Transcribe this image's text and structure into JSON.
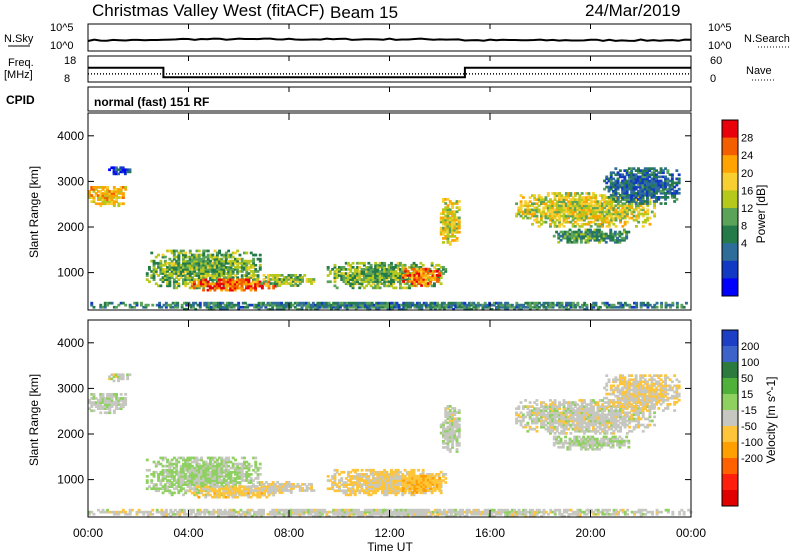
{
  "header": {
    "title": "Christmas Valley West (fitACF)",
    "beam": "Beam 15",
    "date": "24/Mar/2019"
  },
  "sky_panel": {
    "left_label": "N.Sky",
    "right_label": "N.Search",
    "left_ticks": [
      "10^5",
      "10^0"
    ],
    "right_ticks": [
      "10^5",
      "10^0"
    ]
  },
  "freq_panel": {
    "left_label_1": "Freq.",
    "left_label_2": "[MHz]",
    "left_ticks": [
      "18",
      "8"
    ],
    "right_ticks": [
      "60",
      "0"
    ],
    "right_label": "Nave",
    "freq_steps": [
      {
        "t0": 0,
        "t1": 3,
        "mhz": 14.5
      },
      {
        "t0": 3,
        "t1": 15,
        "mhz": 10.2
      },
      {
        "t0": 15,
        "t1": 24,
        "mhz": 14.5
      }
    ],
    "nave_level": 22
  },
  "cpid": {
    "label": "CPID",
    "program": "normal (fast) 151 RF"
  },
  "axes": {
    "y_label": "Slant Range [km]",
    "y_ticks": [
      "4000",
      "3000",
      "2000",
      "1000"
    ],
    "x_ticks": [
      "00:00",
      "04:00",
      "08:00",
      "12:00",
      "16:00",
      "20:00",
      "00:00"
    ],
    "x_label": "Time UT"
  },
  "colorbars": {
    "power": {
      "label": "Power [dB]",
      "ticks": [
        "28",
        "24",
        "20",
        "16",
        "12",
        "8",
        "4"
      ],
      "colors": [
        "#e8000b",
        "#f25e00",
        "#ffa300",
        "#f7cf30",
        "#b5c81c",
        "#5ca35a",
        "#257a49",
        "#2e6d9a",
        "#1239c4",
        "#0000ff"
      ]
    },
    "velocity": {
      "label": "Velocity [m s^-1]",
      "ticks": [
        "200",
        "100",
        "50",
        "15",
        "-15",
        "-50",
        "-100",
        "-200"
      ],
      "colors": [
        "#1c3fc6",
        "#3d62c9",
        "#2c7a3e",
        "#4fb13a",
        "#8fd160",
        "#c7c7c1",
        "#ffc53a",
        "#ff9f00",
        "#ff6100",
        "#ff1f0c",
        "#e10000"
      ]
    }
  },
  "chart_data": {
    "type": "heatmap",
    "title": "Christmas Valley West (fitACF)",
    "xlabel": "Time UT",
    "ylabel": "Slant Range [km]",
    "xlim": [
      0,
      24
    ],
    "ylim": [
      180,
      4500
    ],
    "x_ticks_hours": [
      0,
      4,
      8,
      12,
      16,
      20,
      24
    ],
    "y_ticks_km": [
      1000,
      2000,
      3000,
      4000
    ],
    "power_scale_db": [
      0,
      30
    ],
    "velocity_scale_ms": [
      -250,
      250
    ],
    "echo_regions": [
      {
        "t0": 0.0,
        "t1": 1.5,
        "r0": 2450,
        "r1": 2900,
        "power": 20,
        "velocity": 10
      },
      {
        "t0": 0.8,
        "t1": 1.7,
        "r0": 3150,
        "r1": 3300,
        "power": 6,
        "velocity": 0
      },
      {
        "t0": 2.3,
        "t1": 6.8,
        "r0": 650,
        "r1": 1500,
        "power": 14,
        "velocity": 30
      },
      {
        "t0": 4.0,
        "t1": 7.5,
        "r0": 600,
        "r1": 850,
        "power": 26,
        "velocity": -40
      },
      {
        "t0": 6.5,
        "t1": 9.0,
        "r0": 700,
        "r1": 950,
        "power": 16,
        "velocity": -10
      },
      {
        "t0": 9.5,
        "t1": 14.2,
        "r0": 650,
        "r1": 1200,
        "power": 14,
        "velocity": -30
      },
      {
        "t0": 12.5,
        "t1": 14.0,
        "r0": 700,
        "r1": 1100,
        "power": 24,
        "velocity": -60
      },
      {
        "t0": 14.0,
        "t1": 14.8,
        "r0": 1600,
        "r1": 2600,
        "power": 18,
        "velocity": 5
      },
      {
        "t0": 17.0,
        "t1": 22.5,
        "r0": 2000,
        "r1": 2750,
        "power": 18,
        "velocity": 0
      },
      {
        "t0": 18.5,
        "t1": 21.5,
        "r0": 1650,
        "r1": 1950,
        "power": 12,
        "velocity": 20
      },
      {
        "t0": 20.5,
        "t1": 23.5,
        "r0": 2500,
        "r1": 3300,
        "power": 8,
        "velocity": -20
      },
      {
        "t0": 0.0,
        "t1": 24.0,
        "r0": 180,
        "r1": 350,
        "power": 10,
        "velocity": 0
      }
    ]
  }
}
